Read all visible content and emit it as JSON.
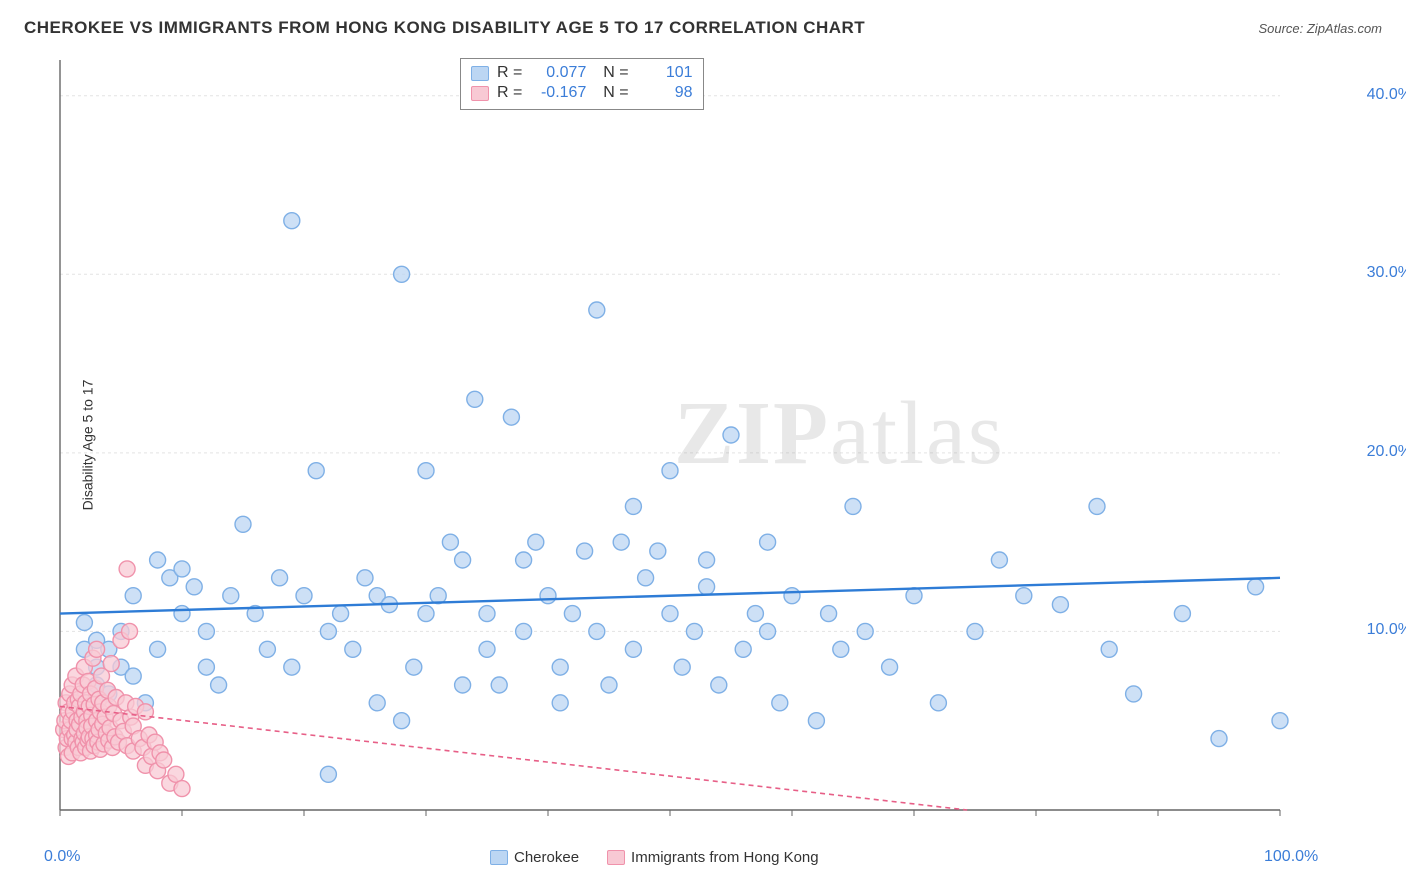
{
  "title": "CHEROKEE VS IMMIGRANTS FROM HONG KONG DISABILITY AGE 5 TO 17 CORRELATION CHART",
  "source_label": "Source: ZipAtlas.com",
  "ylabel": "Disability Age 5 to 17",
  "watermark_a": "ZIP",
  "watermark_b": "atlas",
  "chart": {
    "type": "scatter",
    "xlim": [
      0,
      100
    ],
    "ylim": [
      0,
      42
    ],
    "x_ticks": [
      0,
      100
    ],
    "x_tick_labels": [
      "0.0%",
      "100.0%"
    ],
    "y_ticks": [
      10,
      20,
      30,
      40
    ],
    "y_tick_labels": [
      "10.0%",
      "20.0%",
      "30.0%",
      "40.0%"
    ],
    "x_minor_step": 10,
    "background_color": "#ffffff",
    "grid_color": "#e3e3e3",
    "axis_color": "#666666",
    "marker_radius": 8,
    "marker_stroke_width": 1.4,
    "series": [
      {
        "name": "Cherokee",
        "fill": "#bcd6f3",
        "stroke": "#7fb0e6",
        "trend_color": "#2e7cd6",
        "trend_width": 2.4,
        "trend_dash": "",
        "R": "0.077",
        "N": "101",
        "trend": {
          "y_at_x0": 11.0,
          "y_at_x100": 13.0
        },
        "points": [
          [
            2,
            9
          ],
          [
            2,
            10.5
          ],
          [
            3,
            8
          ],
          [
            3,
            9.5
          ],
          [
            3,
            7
          ],
          [
            4,
            6.5
          ],
          [
            4,
            9
          ],
          [
            5,
            10
          ],
          [
            5,
            8
          ],
          [
            6,
            7.5
          ],
          [
            6,
            12
          ],
          [
            7,
            6
          ],
          [
            8,
            14
          ],
          [
            8,
            9
          ],
          [
            9,
            13
          ],
          [
            10,
            13.5
          ],
          [
            10,
            11
          ],
          [
            11,
            12.5
          ],
          [
            12,
            10
          ],
          [
            12,
            8
          ],
          [
            13,
            7
          ],
          [
            14,
            12
          ],
          [
            15,
            16
          ],
          [
            16,
            11
          ],
          [
            17,
            9
          ],
          [
            18,
            13
          ],
          [
            19,
            8
          ],
          [
            19,
            33
          ],
          [
            20,
            12
          ],
          [
            21,
            19
          ],
          [
            22,
            10
          ],
          [
            22,
            2
          ],
          [
            23,
            11
          ],
          [
            24,
            9
          ],
          [
            25,
            13
          ],
          [
            26,
            12
          ],
          [
            26,
            6
          ],
          [
            27,
            11.5
          ],
          [
            28,
            5
          ],
          [
            28,
            30
          ],
          [
            29,
            8
          ],
          [
            30,
            11
          ],
          [
            30,
            19
          ],
          [
            31,
            12
          ],
          [
            32,
            15
          ],
          [
            33,
            14
          ],
          [
            33,
            7
          ],
          [
            34,
            23
          ],
          [
            35,
            11
          ],
          [
            35,
            9
          ],
          [
            36,
            7
          ],
          [
            37,
            22
          ],
          [
            38,
            10
          ],
          [
            38,
            14
          ],
          [
            39,
            15
          ],
          [
            40,
            12
          ],
          [
            41,
            8
          ],
          [
            41,
            6
          ],
          [
            42,
            11
          ],
          [
            43,
            14.5
          ],
          [
            44,
            10
          ],
          [
            44,
            28
          ],
          [
            45,
            7
          ],
          [
            46,
            15
          ],
          [
            47,
            17
          ],
          [
            47,
            9
          ],
          [
            48,
            13
          ],
          [
            49,
            14.5
          ],
          [
            50,
            11
          ],
          [
            50,
            19
          ],
          [
            51,
            8
          ],
          [
            52,
            10
          ],
          [
            53,
            12.5
          ],
          [
            53,
            14
          ],
          [
            54,
            7
          ],
          [
            55,
            21
          ],
          [
            56,
            9
          ],
          [
            57,
            11
          ],
          [
            58,
            10
          ],
          [
            58,
            15
          ],
          [
            59,
            6
          ],
          [
            60,
            12
          ],
          [
            62,
            5
          ],
          [
            63,
            11
          ],
          [
            64,
            9
          ],
          [
            65,
            17
          ],
          [
            66,
            10
          ],
          [
            68,
            8
          ],
          [
            70,
            12
          ],
          [
            72,
            6
          ],
          [
            75,
            10
          ],
          [
            77,
            14
          ],
          [
            79,
            12
          ],
          [
            82,
            11.5
          ],
          [
            85,
            17
          ],
          [
            86,
            9
          ],
          [
            88,
            6.5
          ],
          [
            92,
            11
          ],
          [
            95,
            4
          ],
          [
            98,
            12.5
          ],
          [
            100,
            5
          ]
        ]
      },
      {
        "name": "Immigrants from Hong Kong",
        "fill": "#f8c9d4",
        "stroke": "#f092ab",
        "trend_color": "#e75f87",
        "trend_width": 1.6,
        "trend_dash": "5,4",
        "R": "-0.167",
        "N": "98",
        "trend": {
          "y_at_x0": 5.8,
          "y_at_x100": -2.0
        },
        "points": [
          [
            0.3,
            4.5
          ],
          [
            0.4,
            5
          ],
          [
            0.5,
            3.5
          ],
          [
            0.5,
            6
          ],
          [
            0.6,
            4
          ],
          [
            0.7,
            5.5
          ],
          [
            0.7,
            3
          ],
          [
            0.8,
            6.5
          ],
          [
            0.8,
            4.5
          ],
          [
            0.9,
            5
          ],
          [
            1,
            7
          ],
          [
            1,
            4
          ],
          [
            1,
            3.2
          ],
          [
            1.1,
            5.5
          ],
          [
            1.2,
            6
          ],
          [
            1.2,
            4.2
          ],
          [
            1.3,
            3.8
          ],
          [
            1.3,
            7.5
          ],
          [
            1.4,
            5
          ],
          [
            1.4,
            4.5
          ],
          [
            1.5,
            6.2
          ],
          [
            1.5,
            3.5
          ],
          [
            1.6,
            5.8
          ],
          [
            1.6,
            4.8
          ],
          [
            1.7,
            6.5
          ],
          [
            1.7,
            3.2
          ],
          [
            1.8,
            5.2
          ],
          [
            1.8,
            4
          ],
          [
            1.9,
            7
          ],
          [
            1.9,
            3.8
          ],
          [
            2,
            5.5
          ],
          [
            2,
            4.3
          ],
          [
            2,
            8
          ],
          [
            2.1,
            6
          ],
          [
            2.1,
            3.5
          ],
          [
            2.2,
            5
          ],
          [
            2.2,
            4.6
          ],
          [
            2.3,
            7.2
          ],
          [
            2.3,
            3.9
          ],
          [
            2.4,
            5.8
          ],
          [
            2.4,
            4.1
          ],
          [
            2.5,
            6.5
          ],
          [
            2.5,
            3.3
          ],
          [
            2.6,
            5.3
          ],
          [
            2.6,
            4.7
          ],
          [
            2.7,
            8.5
          ],
          [
            2.7,
            4
          ],
          [
            2.8,
            5.9
          ],
          [
            2.8,
            3.6
          ],
          [
            2.9,
            6.8
          ],
          [
            3,
            5
          ],
          [
            3,
            4.2
          ],
          [
            3,
            9
          ],
          [
            3.1,
            3.8
          ],
          [
            3.2,
            6.2
          ],
          [
            3.2,
            4.5
          ],
          [
            3.3,
            5.5
          ],
          [
            3.3,
            3.4
          ],
          [
            3.4,
            7.5
          ],
          [
            3.5,
            4.8
          ],
          [
            3.5,
            6
          ],
          [
            3.6,
            3.7
          ],
          [
            3.7,
            5.2
          ],
          [
            3.8,
            4.3
          ],
          [
            3.9,
            6.7
          ],
          [
            4,
            3.9
          ],
          [
            4,
            5.8
          ],
          [
            4.1,
            4.6
          ],
          [
            4.2,
            8.2
          ],
          [
            4.3,
            3.5
          ],
          [
            4.4,
            5.4
          ],
          [
            4.5,
            4.1
          ],
          [
            4.6,
            6.3
          ],
          [
            4.8,
            3.8
          ],
          [
            5,
            5
          ],
          [
            5,
            9.5
          ],
          [
            5.2,
            4.4
          ],
          [
            5.4,
            6
          ],
          [
            5.5,
            3.6
          ],
          [
            5.7,
            10
          ],
          [
            5.8,
            5.2
          ],
          [
            6,
            4.7
          ],
          [
            6,
            3.3
          ],
          [
            6.2,
            5.8
          ],
          [
            6.5,
            4
          ],
          [
            6.8,
            3.5
          ],
          [
            7,
            5.5
          ],
          [
            7,
            2.5
          ],
          [
            7.3,
            4.2
          ],
          [
            7.5,
            3
          ],
          [
            7.8,
            3.8
          ],
          [
            8,
            2.2
          ],
          [
            8.2,
            3.2
          ],
          [
            8.5,
            2.8
          ],
          [
            9,
            1.5
          ],
          [
            9.5,
            2
          ],
          [
            10,
            1.2
          ],
          [
            5.5,
            13.5
          ]
        ]
      }
    ]
  },
  "bottom_legend": {
    "items": [
      {
        "label": "Cherokee",
        "fill": "#bcd6f3",
        "stroke": "#7fb0e6"
      },
      {
        "label": "Immigrants from Hong Kong",
        "fill": "#f8c9d4",
        "stroke": "#f092ab"
      }
    ]
  }
}
